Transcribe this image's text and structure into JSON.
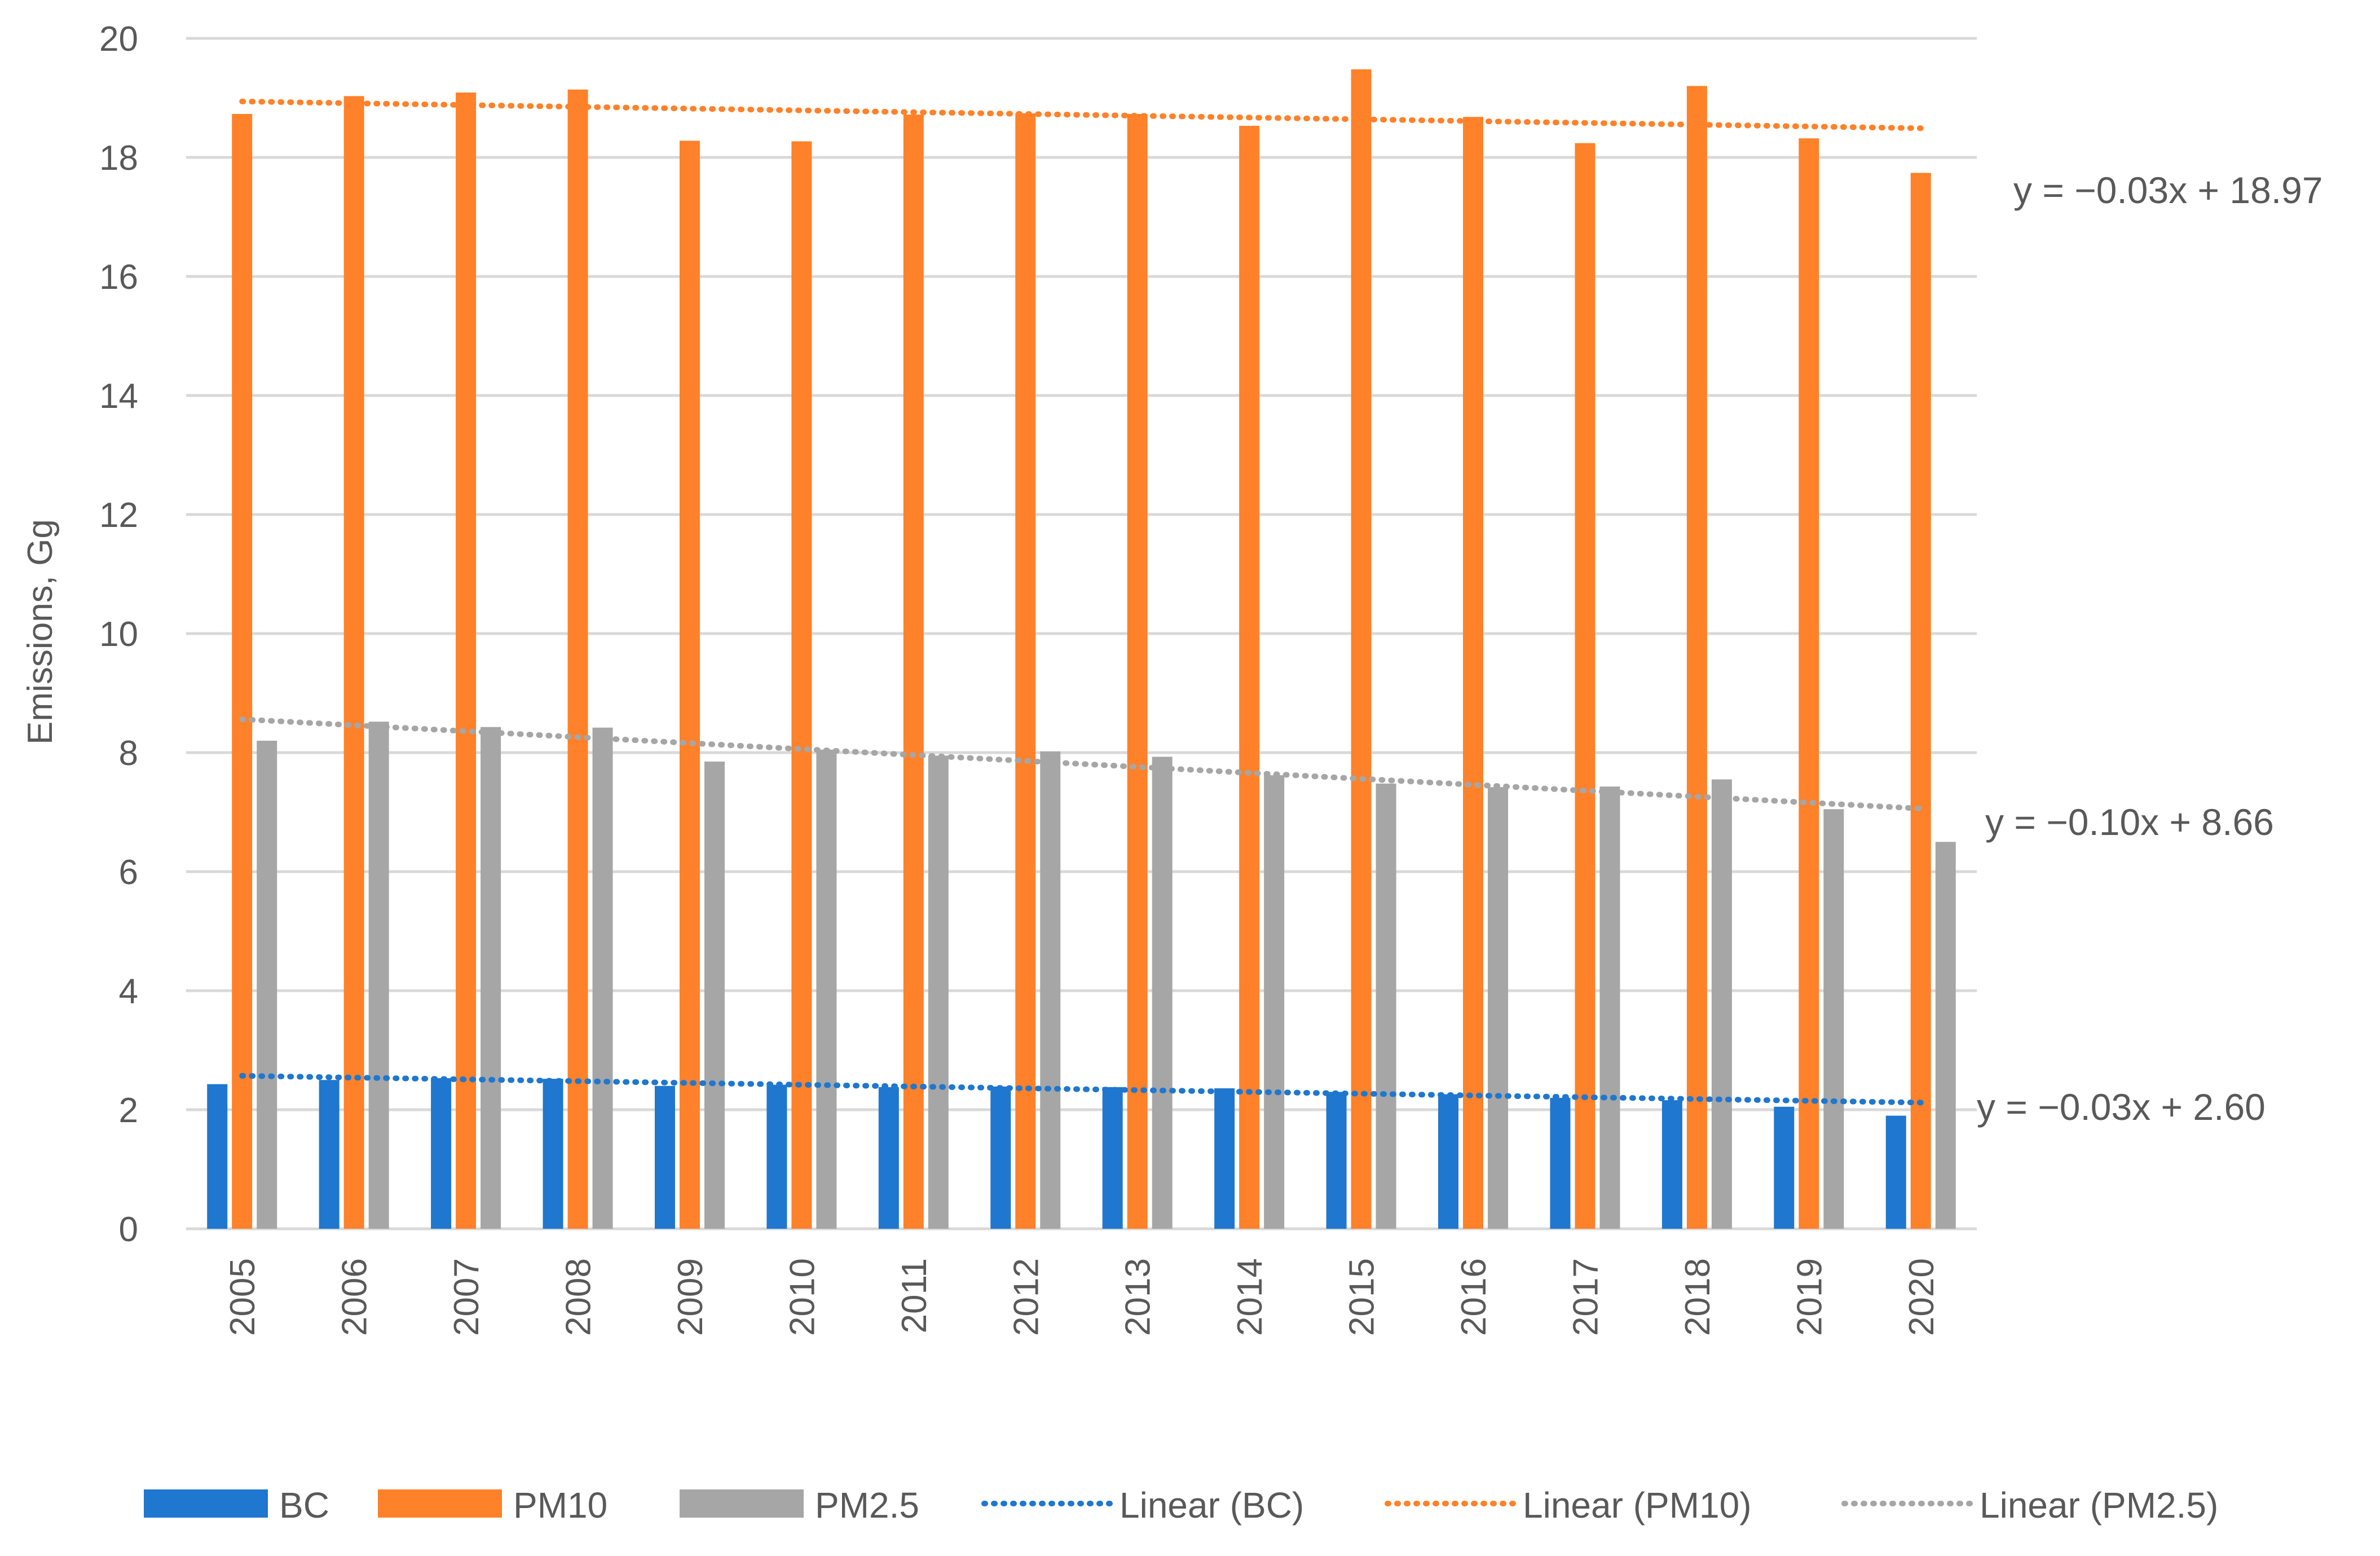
{
  "chart_data": {
    "type": "bar",
    "ylabel": "Emissions, Gg",
    "xlabel": "",
    "ylim": [
      0,
      20
    ],
    "yticks": [
      0,
      2,
      4,
      6,
      8,
      10,
      12,
      14,
      16,
      18,
      20
    ],
    "grid": true,
    "legend_position": "bottom",
    "categories": [
      "2005",
      "2006",
      "2007",
      "2008",
      "2009",
      "2010",
      "2011",
      "2012",
      "2013",
      "2014",
      "2015",
      "2016",
      "2017",
      "2018",
      "2019",
      "2020"
    ],
    "series": [
      {
        "name": "BC",
        "color": "#1f77cf",
        "values": [
          2.43,
          2.5,
          2.53,
          2.52,
          2.4,
          2.42,
          2.38,
          2.39,
          2.38,
          2.36,
          2.3,
          2.26,
          2.2,
          2.16,
          2.05,
          1.9
        ]
      },
      {
        "name": "PM10",
        "color": "#ff8129",
        "values": [
          18.73,
          19.03,
          19.09,
          19.14,
          18.28,
          18.27,
          18.72,
          18.74,
          18.73,
          18.53,
          19.48,
          18.68,
          18.24,
          19.2,
          18.32,
          17.74
        ]
      },
      {
        "name": "PM2.5",
        "color": "#a6a6a6",
        "values": [
          8.2,
          8.52,
          8.43,
          8.42,
          7.85,
          8.05,
          7.95,
          8.02,
          7.93,
          7.62,
          7.48,
          7.42,
          7.43,
          7.55,
          7.05,
          6.5
        ]
      }
    ],
    "trendlines": [
      {
        "name": "Linear (BC)",
        "color": "#1f77cf",
        "slope": -0.03,
        "intercept": 2.6,
        "equation": "y = −0.03x + 2.60"
      },
      {
        "name": "Linear (PM10)",
        "color": "#ff8129",
        "slope": -0.03,
        "intercept": 18.97,
        "equation": "y = −0.03x + 18.97"
      },
      {
        "name": "Linear (PM2.5)",
        "color": "#a6a6a6",
        "slope": -0.1,
        "intercept": 8.66,
        "equation": "y = −0.10x + 8.66"
      }
    ]
  }
}
